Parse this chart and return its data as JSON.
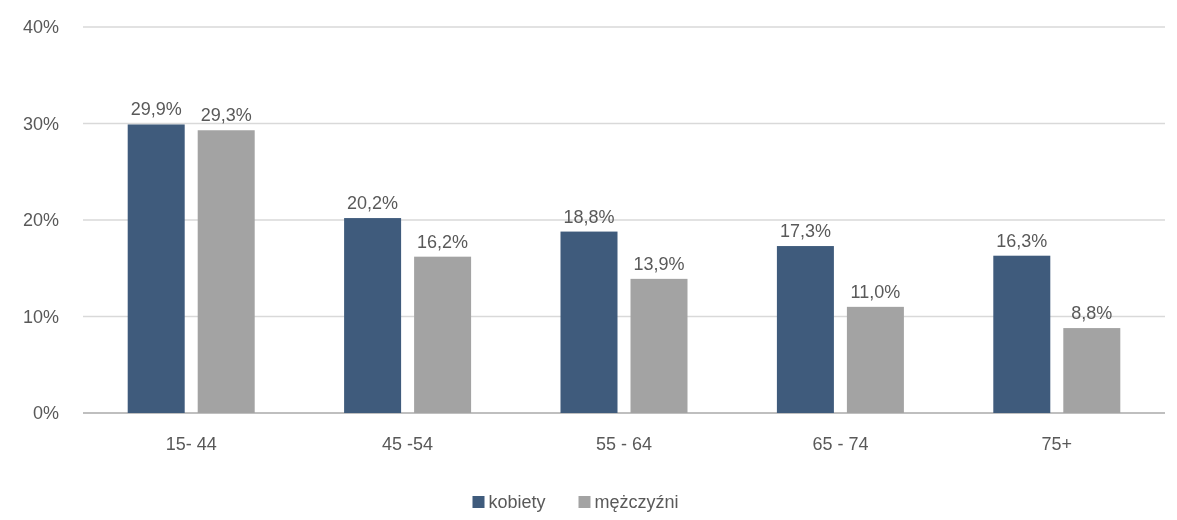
{
  "chart_data": {
    "type": "bar",
    "categories": [
      "15- 44",
      "45 -54",
      "55 - 64",
      "65 - 74",
      "75+"
    ],
    "series": [
      {
        "name": "kobiety",
        "color": "#3f5b7c",
        "values": [
          29.9,
          20.2,
          18.8,
          17.3,
          16.3
        ],
        "value_labels": [
          "29,9%",
          "20,2%",
          "18,8%",
          "17,3%",
          "16,3%"
        ]
      },
      {
        "name": "mężczyźni",
        "color": "#a3a3a3",
        "values": [
          29.3,
          16.2,
          13.9,
          11.0,
          8.8
        ],
        "value_labels": [
          "29,3%",
          "16,2%",
          "13,9%",
          "11,0%",
          "8,8%"
        ]
      }
    ],
    "ylim": [
      0,
      40
    ],
    "yticks": [
      {
        "value": 0,
        "label": "0%"
      },
      {
        "value": 10,
        "label": "10%"
      },
      {
        "value": 20,
        "label": "20%"
      },
      {
        "value": 30,
        "label": "30%"
      },
      {
        "value": 40,
        "label": "40%"
      }
    ],
    "grid": "y",
    "legend": "bottom"
  }
}
